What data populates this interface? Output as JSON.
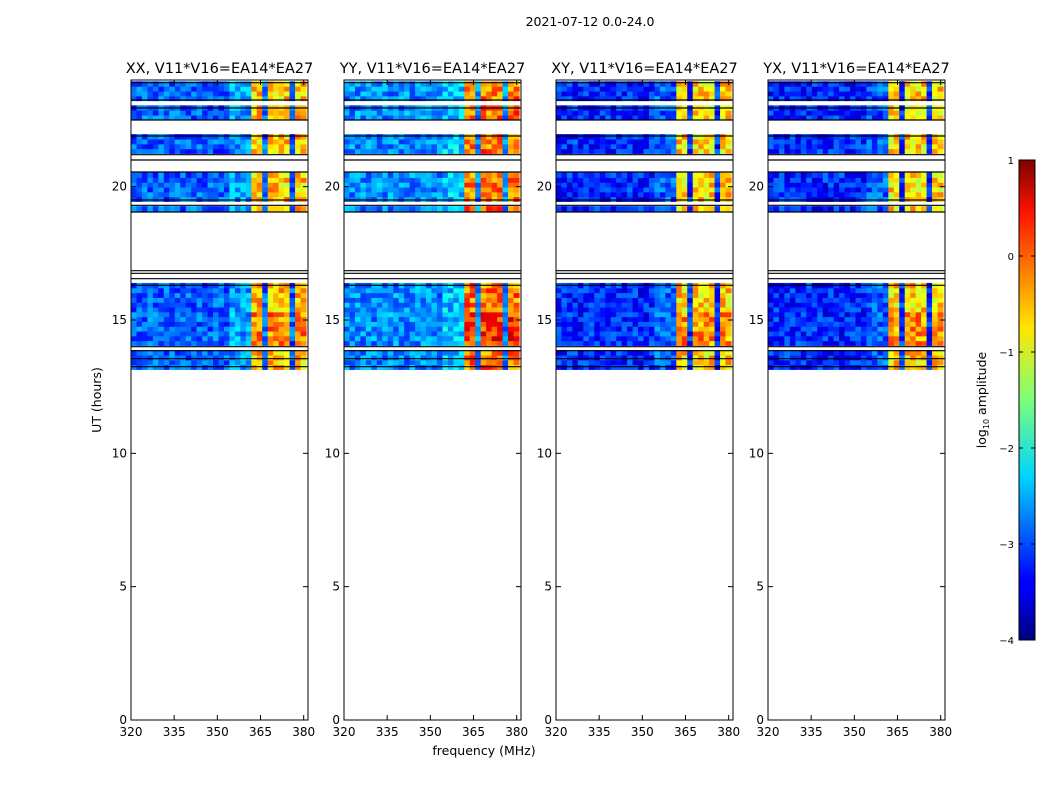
{
  "figure": {
    "suptitle": "2021-07-12 0.0-24.0",
    "xlabel": "frequency (MHz)",
    "ylabel": "UT (hours)"
  },
  "colorbar": {
    "label": "log",
    "label_sub": "10",
    "label_rest": " amplitude",
    "ticks": [
      "1",
      "0",
      "−1",
      "−2",
      "−3",
      "−4"
    ],
    "tick_values": [
      1,
      0,
      -1,
      -2,
      -3,
      -4
    ],
    "range": [
      -4,
      1
    ],
    "colormap": "jet"
  },
  "chart_data": {
    "type": "heatmap",
    "title": "2021-07-12 0.0-24.0",
    "xlabel": "frequency (MHz)",
    "ylabel": "UT (hours)",
    "xlim": [
      320,
      381.5
    ],
    "ylim": [
      0,
      24
    ],
    "xticks": [
      320,
      335,
      350,
      365,
      380
    ],
    "xtick_labels": [
      "320",
      "335",
      "350",
      "365",
      "380"
    ],
    "yticks": [
      0,
      5,
      10,
      15,
      20
    ],
    "ytick_labels": [
      "0",
      "5",
      "10",
      "15",
      "20"
    ],
    "panels": [
      {
        "title": "XX, V11*V16=EA14*EA27",
        "base_level": -2.9,
        "rfi_level": -0.6
      },
      {
        "title": "YY, V11*V16=EA14*EA27",
        "base_level": -2.7,
        "rfi_level": -0.2
      },
      {
        "title": "XY, V11*V16=EA14*EA27",
        "base_level": -3.2,
        "rfi_level": -0.7
      },
      {
        "title": "YX, V11*V16=EA14*EA27",
        "base_level": -3.2,
        "rfi_level": -0.7
      }
    ],
    "data_time_blocks_ut": [
      [
        13.15,
        13.85
      ],
      [
        14.0,
        16.3
      ],
      [
        19.05,
        19.3
      ],
      [
        19.5,
        20.55
      ],
      [
        21.2,
        21.9
      ],
      [
        22.5,
        23.0
      ],
      [
        23.2,
        23.9
      ]
    ],
    "flagged_gaps_ut": [
      [
        16.3,
        19.05
      ],
      [
        21.0,
        21.2
      ],
      [
        22.95,
        23.25
      ]
    ],
    "rfi_bands_mhz": [
      [
        362,
        366
      ],
      [
        366.8,
        370.8
      ],
      [
        371.8,
        375.8
      ],
      [
        376.8,
        380.8
      ]
    ],
    "cbar_min": -4,
    "cbar_max": 1
  }
}
